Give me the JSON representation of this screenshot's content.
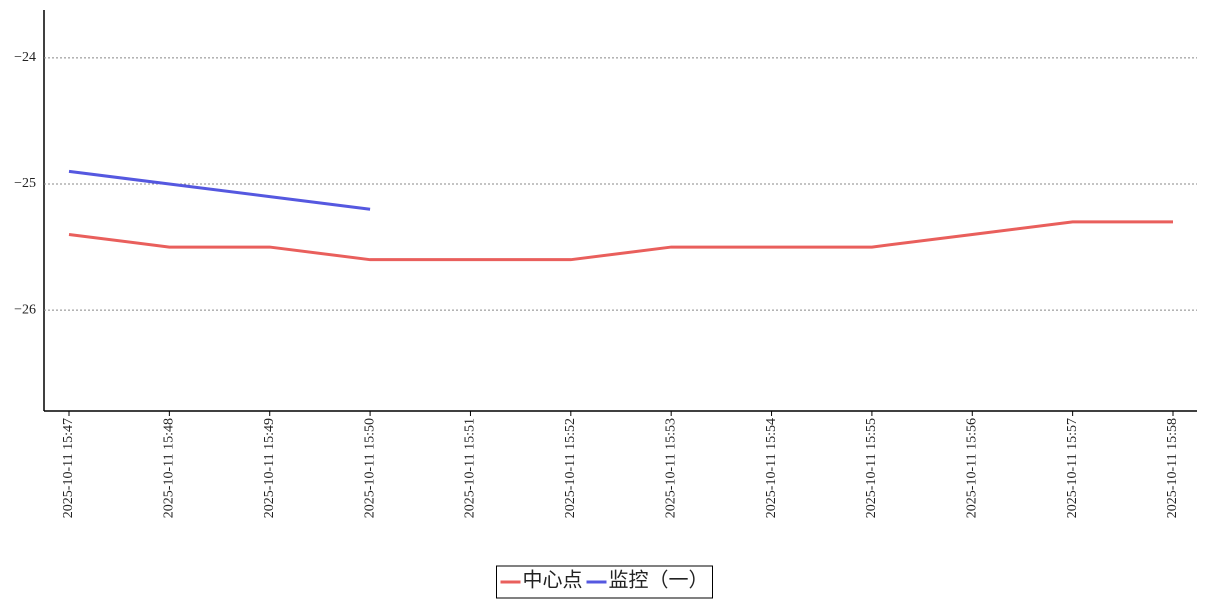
{
  "chart_data": {
    "type": "line",
    "categories": [
      "2025-10-11 15:47",
      "2025-10-11 15:48",
      "2025-10-11 15:49",
      "2025-10-11 15:50",
      "2025-10-11 15:51",
      "2025-10-11 15:52",
      "2025-10-11 15:53",
      "2025-10-11 15:54",
      "2025-10-11 15:55",
      "2025-10-11 15:56",
      "2025-10-11 15:57",
      "2025-10-11 15:58"
    ],
    "series": [
      {
        "name": "中心点",
        "color": "#e95f5c",
        "values": [
          -25.4,
          -25.5,
          -25.5,
          -25.6,
          -25.6,
          -25.6,
          -25.5,
          -25.5,
          -25.5,
          -25.4,
          -25.3,
          -25.3
        ]
      },
      {
        "name": "监控（一）",
        "color": "#5558e0",
        "values": [
          -24.9,
          -25.0,
          -25.1,
          -25.2,
          null,
          null,
          null,
          null,
          null,
          null,
          null,
          null
        ]
      }
    ],
    "ylim": [
      -26.8,
      -23.62
    ],
    "yticks": [
      {
        "value": -24,
        "label": "−24"
      },
      {
        "value": -25,
        "label": "−25"
      },
      {
        "value": -26,
        "label": "−26"
      }
    ],
    "grid": true,
    "legend": "bottom"
  }
}
